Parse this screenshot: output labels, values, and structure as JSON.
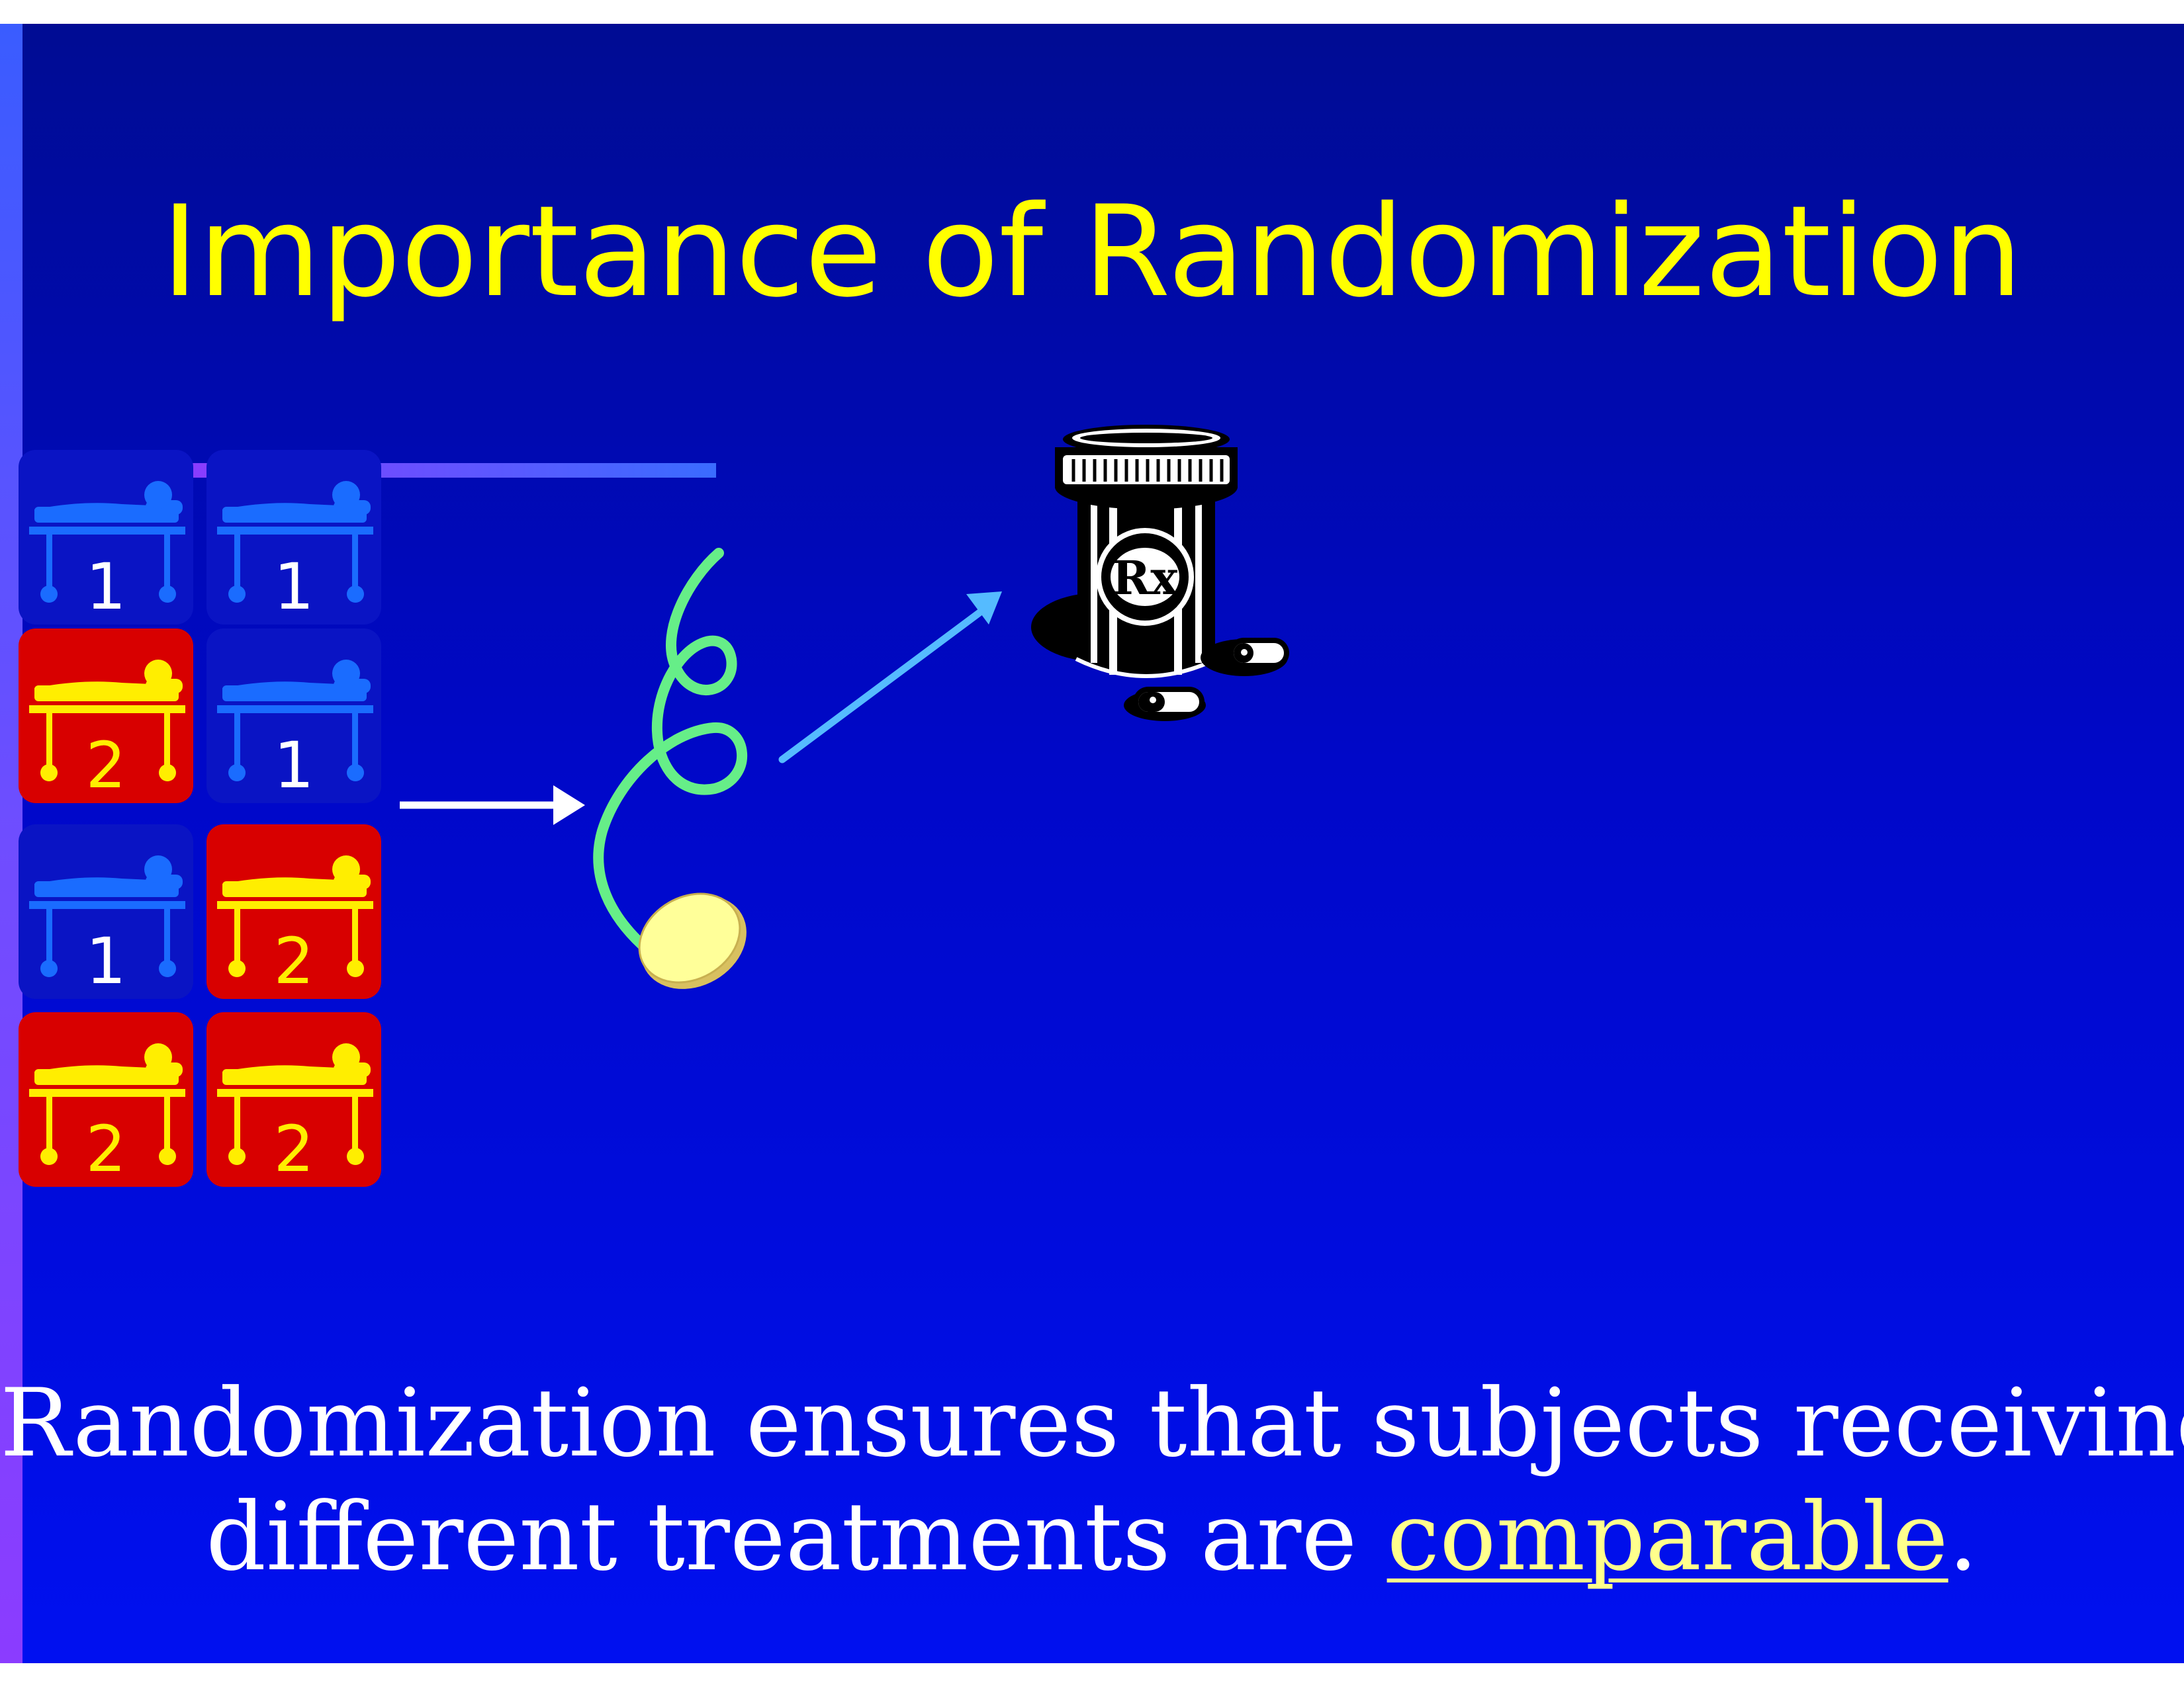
{
  "slide": {
    "title": "Importance of Randomization",
    "caption": {
      "line1": "Randomization ensures that subjects receiving",
      "line2_prefix": "different treatments are ",
      "line2_highlight": "comparable",
      "line2_suffix": "."
    }
  },
  "patients": [
    {
      "group": "1"
    },
    {
      "group": "1"
    },
    {
      "group": "2"
    },
    {
      "group": "1"
    },
    {
      "group": "1"
    },
    {
      "group": "2"
    },
    {
      "group": "2"
    },
    {
      "group": "2"
    }
  ],
  "icons": {
    "bed": "hospital-bed-icon",
    "coin": "coin-toss-icon",
    "bottle": "prescription-bottle-icon",
    "rx_label": "Rx"
  },
  "colors": {
    "group1_bg": "#0a14c4",
    "group1_fg": "#1a6cff",
    "group2_bg": "#d80000",
    "group2_fg": "#ffee00",
    "title": "#ffff00",
    "caption": "#ffffff",
    "highlight": "#ffff8c"
  }
}
